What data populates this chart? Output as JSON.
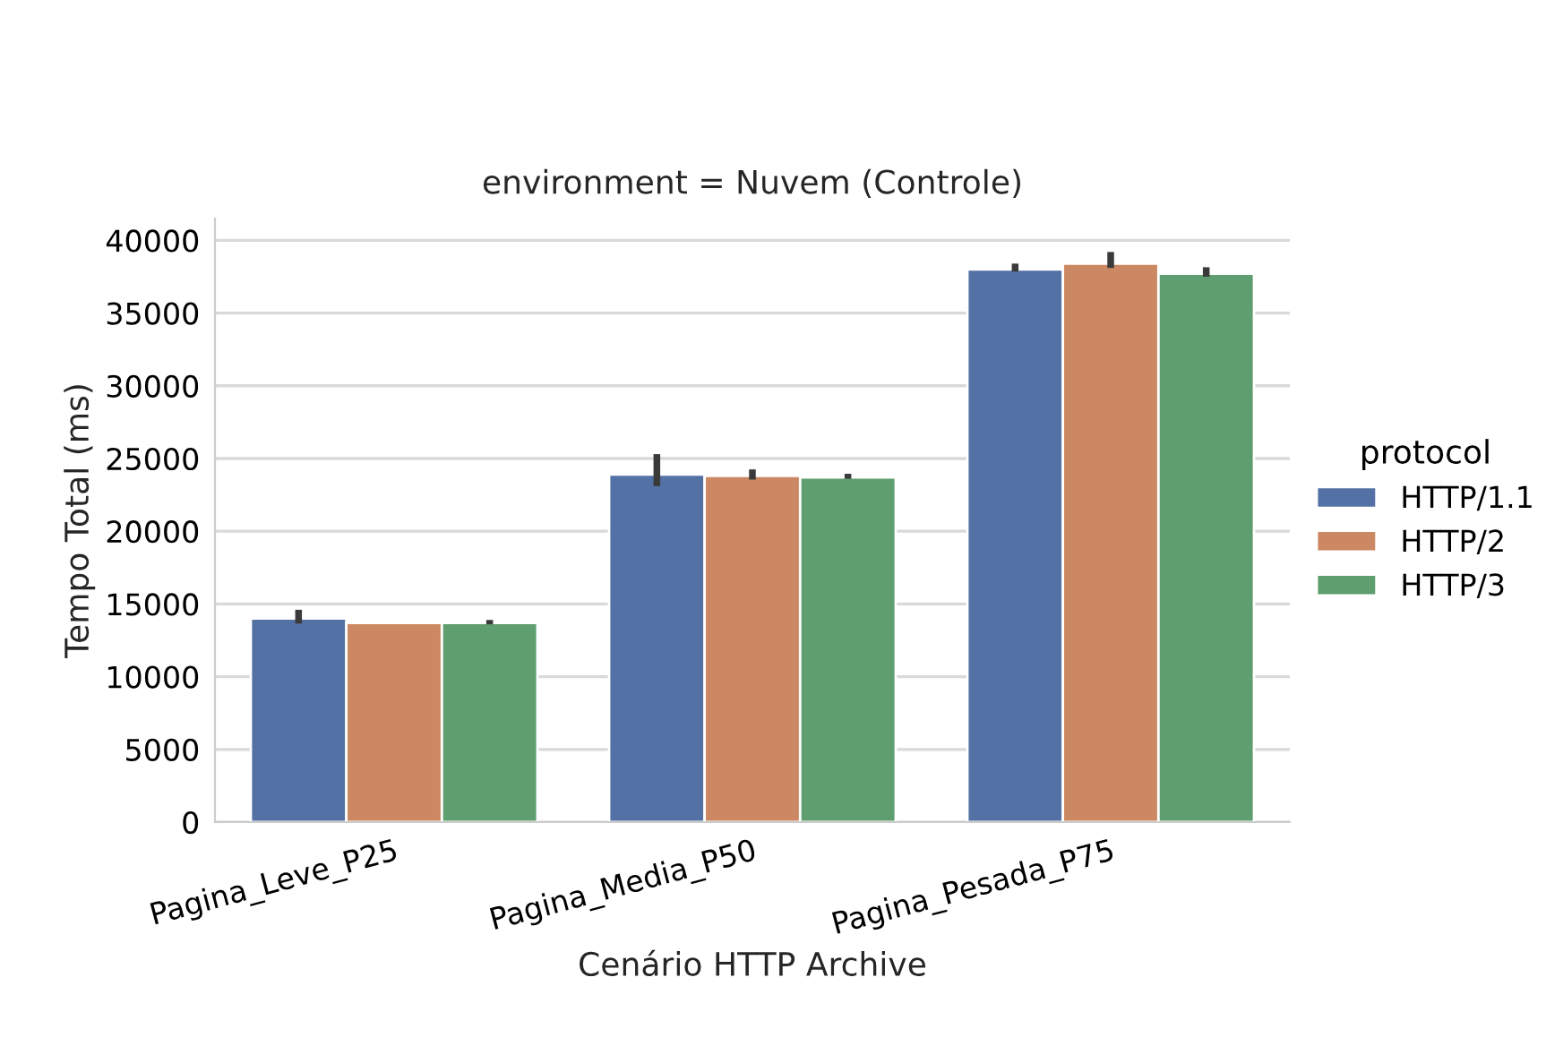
{
  "chart_data": {
    "type": "bar",
    "title": "environment = Nuvem (Controle)",
    "xlabel": "Cenário HTTP Archive",
    "ylabel": "Tempo Total (ms)",
    "legend_title": "protocol",
    "categories": [
      "Pagina_Leve_P25",
      "Pagina_Media_P50",
      "Pagina_Pesada_P75"
    ],
    "series": [
      {
        "name": "HTTP/1.1",
        "color": "#5471a6",
        "values": [
          14000,
          23900,
          38000
        ],
        "errors": [
          [
            13650,
            14600
          ],
          [
            23100,
            25300
          ],
          [
            37850,
            38400
          ]
        ]
      },
      {
        "name": "HTTP/2",
        "color": "#cc8862",
        "values": [
          13700,
          23800,
          38400
        ],
        "errors": [
          null,
          [
            23550,
            24250
          ],
          [
            38100,
            39200
          ]
        ]
      },
      {
        "name": "HTTP/3",
        "color": "#5f9e6e",
        "values": [
          13700,
          23700,
          37700
        ],
        "errors": [
          [
            13600,
            13900
          ],
          [
            23600,
            23950
          ],
          [
            37500,
            38150
          ]
        ]
      }
    ],
    "ylim": [
      0,
      41500
    ],
    "yticks": [
      0,
      5000,
      10000,
      15000,
      20000,
      25000,
      30000,
      35000,
      40000
    ],
    "grid": "y",
    "legend": "right"
  }
}
